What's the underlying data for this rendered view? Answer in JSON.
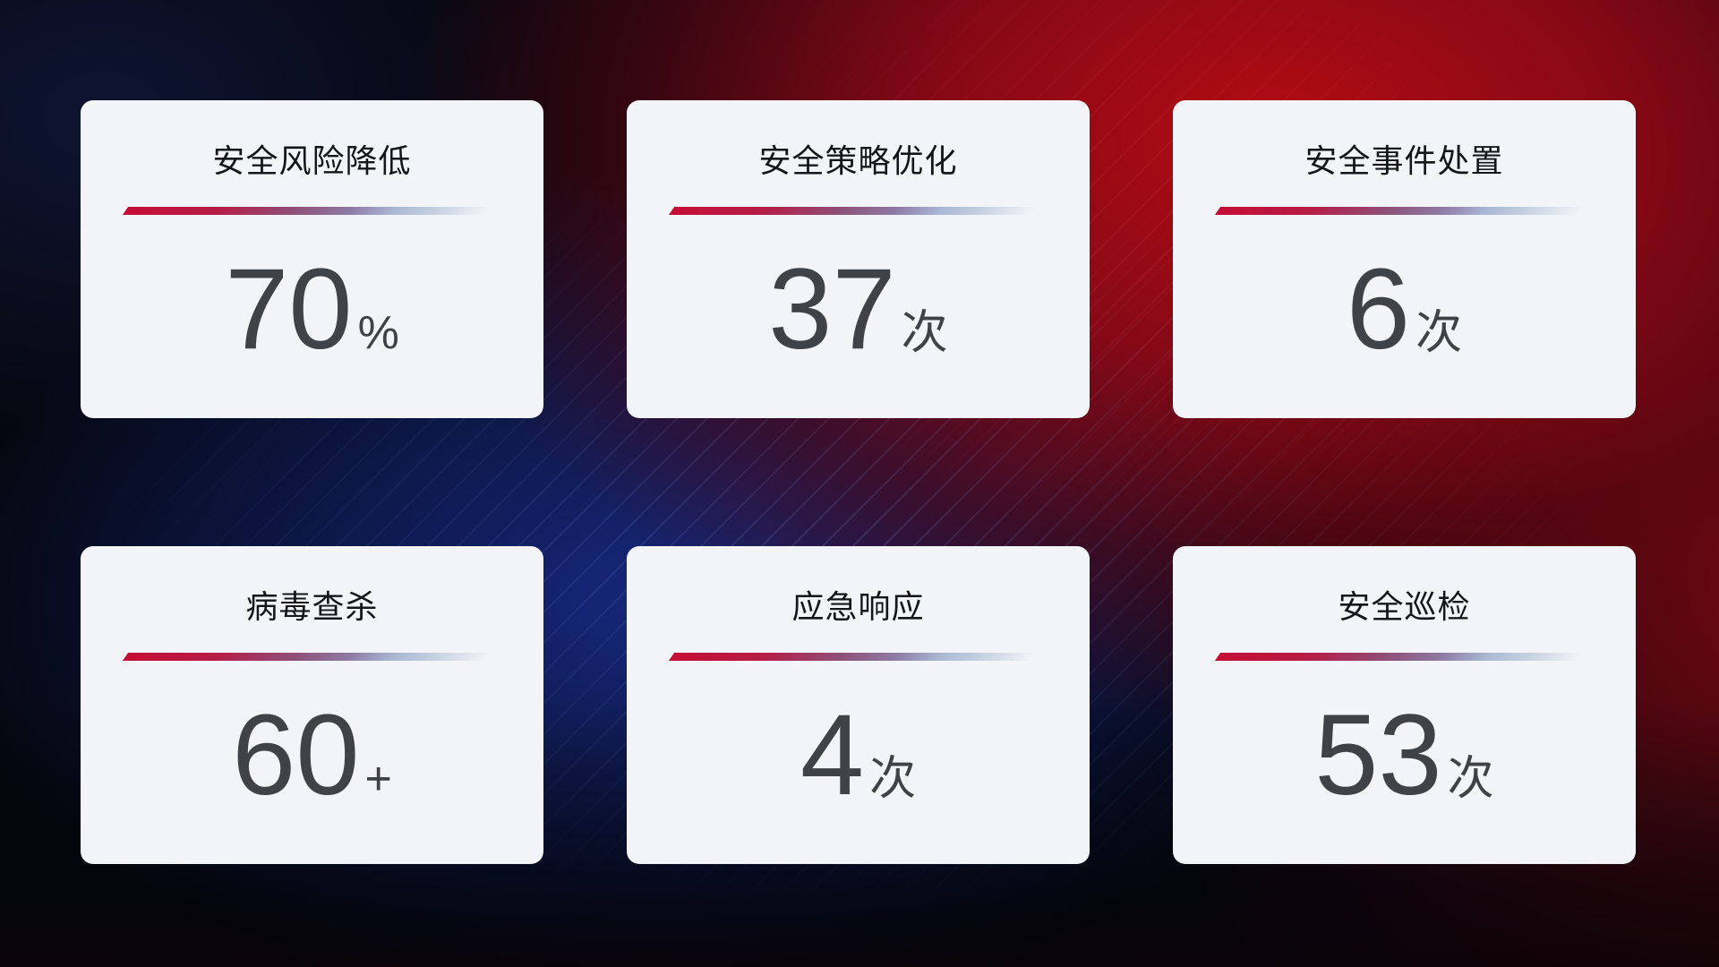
{
  "page": {
    "description": "安全运营数据统计面板",
    "colors": {
      "background_dark_navy": "#05070f",
      "background_red_glow": "#ba0c14",
      "background_blue_glow": "#172a84",
      "card_background": "#f3f4f8",
      "title_text": "#14161b",
      "value_text": "#3f4246",
      "divider_red": "#c50d35",
      "divider_blue": "#aab8d4"
    }
  },
  "cards": [
    {
      "title": "安全风险降低",
      "value": "70",
      "suffix": "%"
    },
    {
      "title": "安全策略优化",
      "value": "37",
      "suffix": "次"
    },
    {
      "title": "安全事件处置",
      "value": "6",
      "suffix": "次"
    },
    {
      "title": "病毒查杀",
      "value": "60",
      "suffix": "+"
    },
    {
      "title": "应急响应",
      "value": "4",
      "suffix": "次"
    },
    {
      "title": "安全巡检",
      "value": "53",
      "suffix": "次"
    }
  ]
}
